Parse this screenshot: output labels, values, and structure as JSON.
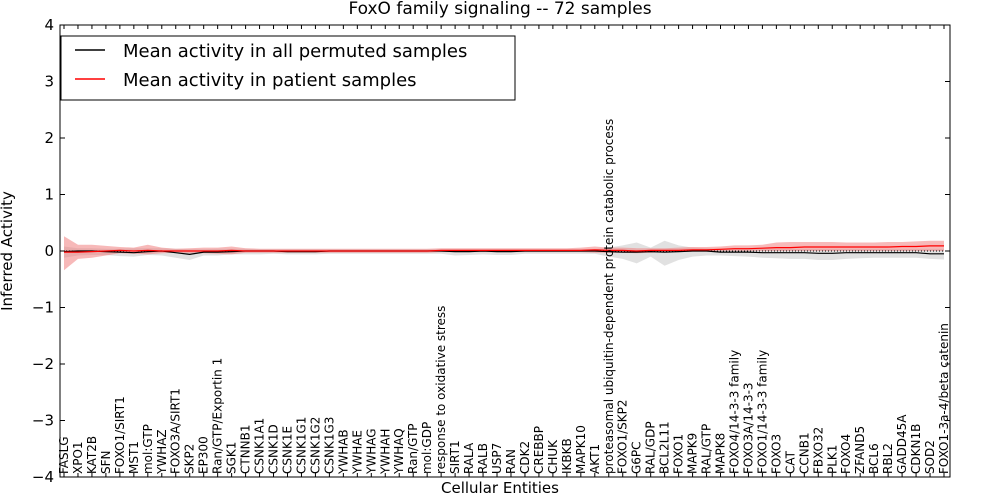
{
  "chart_data": {
    "type": "line",
    "title": "FoxO family signaling -- 72 samples",
    "xlabel": "Cellular Entities",
    "ylabel": "Inferred Activity",
    "ylim": [
      -4,
      4
    ],
    "yticks": [
      -4,
      -3,
      -2,
      -1,
      0,
      1,
      2,
      3,
      4
    ],
    "ytick_labels": [
      "−4",
      "−3",
      "−2",
      "−1",
      "0",
      "1",
      "2",
      "3",
      "4"
    ],
    "legend_position": "top-left",
    "colors": {
      "permuted": "#000000",
      "patient": "#ff0000",
      "patient_band": "#f08080",
      "permuted_band": "#c8c8c8",
      "zero_line": "#000000"
    },
    "categories": [
      "FASLG",
      "XPO1",
      "KAT2B",
      "SFN",
      "FOXO1/SIRT1",
      "MST1",
      "mol:GTP",
      "YWHAZ",
      "FOXO3A/SIRT1",
      "SKP2",
      "EP300",
      "Ran/GTP/Exportin 1",
      "SGK1",
      "CTNNB1",
      "CSNK1A1",
      "CSNK1D",
      "CSNK1E",
      "CSNK1G1",
      "CSNK1G2",
      "CSNK1G3",
      "YWHAB",
      "YWHAE",
      "YWHAG",
      "YWHAH",
      "YWHAQ",
      "Ran/GTP",
      "mol:GDP",
      "response to oxidative stress",
      "SIRT1",
      "RALA",
      "RALB",
      "USP7",
      "RAN",
      "CDK2",
      "CREBBP",
      "CHUK",
      "IKBKB",
      "MAPK10",
      "AKT1",
      "proteasomal ubiquitin-dependent protein catabolic process",
      "FOXO1/SKP2",
      "G6PC",
      "RAL/GDP",
      "BCL2L11",
      "FOXO1",
      "MAPK9",
      "RAL/GTP",
      "MAPK8",
      "FOXO4/14-3-3 family",
      "FOXO3A/14-3-3",
      "FOXO1/14-3-3 family",
      "FOXO3",
      "CAT",
      "CCNB1",
      "FBXO32",
      "PLK1",
      "FOXO4",
      "ZFAND5",
      "BCL6",
      "RBL2",
      "GADD45A",
      "CDKN1B",
      "SOD2",
      "FOXO1-3a-4/beta catenin"
    ],
    "series": [
      {
        "name": "Mean activity in all permuted samples",
        "values": [
          -0.01,
          0,
          0,
          -0.01,
          -0.02,
          -0.03,
          -0.01,
          0,
          -0.03,
          -0.06,
          -0.02,
          -0.02,
          -0.01,
          0,
          0,
          0,
          -0.01,
          -0.01,
          -0.01,
          0,
          0,
          0,
          0,
          0,
          0,
          0,
          0,
          0,
          -0.01,
          -0.01,
          0,
          -0.01,
          -0.01,
          0,
          0,
          0,
          0,
          0,
          0,
          -0.01,
          -0.02,
          -0.02,
          -0.01,
          -0.02,
          -0.01,
          0,
          0,
          -0.02,
          -0.02,
          -0.02,
          -0.03,
          -0.03,
          -0.03,
          -0.03,
          -0.04,
          -0.04,
          -0.03,
          -0.03,
          -0.03,
          -0.03,
          -0.03,
          -0.03,
          -0.05,
          -0.05
        ],
        "band_upper": [
          0.08,
          0.05,
          0.05,
          0.04,
          0.04,
          0.05,
          0.05,
          0.05,
          0.04,
          0.03,
          0.03,
          0.04,
          0.04,
          0.04,
          0.03,
          0.03,
          0.03,
          0.03,
          0.03,
          0.03,
          0.03,
          0.03,
          0.03,
          0.03,
          0.03,
          0.03,
          0.03,
          0.03,
          0.03,
          0.03,
          0.03,
          0.03,
          0.03,
          0.03,
          0.03,
          0.03,
          0.03,
          0.03,
          0.03,
          0.06,
          0.1,
          0.15,
          0.06,
          0.18,
          0.1,
          0.06,
          0.05,
          0.04,
          0.04,
          0.04,
          0.04,
          0.04,
          0.04,
          0.04,
          0.04,
          0.04,
          0.04,
          0.04,
          0.04,
          0.04,
          0.04,
          0.04,
          0.04,
          0.04
        ],
        "band_lower": [
          -0.12,
          -0.08,
          -0.07,
          -0.07,
          -0.09,
          -0.1,
          -0.07,
          -0.08,
          -0.12,
          -0.16,
          -0.08,
          -0.08,
          -0.06,
          -0.06,
          -0.06,
          -0.05,
          -0.06,
          -0.06,
          -0.06,
          -0.05,
          -0.05,
          -0.05,
          -0.05,
          -0.05,
          -0.05,
          -0.05,
          -0.05,
          -0.05,
          -0.08,
          -0.07,
          -0.06,
          -0.07,
          -0.07,
          -0.05,
          -0.05,
          -0.05,
          -0.05,
          -0.05,
          -0.05,
          -0.1,
          -0.14,
          -0.22,
          -0.1,
          -0.26,
          -0.16,
          -0.1,
          -0.08,
          -0.08,
          -0.09,
          -0.1,
          -0.12,
          -0.13,
          -0.14,
          -0.14,
          -0.16,
          -0.16,
          -0.14,
          -0.13,
          -0.12,
          -0.12,
          -0.12,
          -0.12,
          -0.14,
          -0.15
        ]
      },
      {
        "name": "Mean activity in patient samples",
        "values": [
          -0.02,
          -0.02,
          -0.01,
          0,
          0.01,
          0,
          0.01,
          0,
          0,
          0,
          0,
          0,
          0.01,
          0,
          0,
          0,
          0,
          0,
          0,
          0,
          0,
          0,
          0,
          0,
          0,
          0,
          0,
          0.01,
          0.01,
          0.01,
          0.01,
          0.01,
          0.01,
          0.01,
          0.01,
          0.01,
          0.01,
          0.01,
          0.02,
          0.01,
          0.01,
          0,
          0.01,
          0.01,
          0.01,
          0.02,
          0.02,
          0.03,
          0.04,
          0.04,
          0.05,
          0.06,
          0.06,
          0.07,
          0.07,
          0.07,
          0.07,
          0.07,
          0.07,
          0.07,
          0.08,
          0.08,
          0.09,
          0.09
        ],
        "band_upper": [
          0.26,
          0.11,
          0.11,
          0.09,
          0.07,
          0.06,
          0.11,
          0.06,
          0.04,
          0.05,
          0.06,
          0.06,
          0.08,
          0.05,
          0.04,
          0.04,
          0.04,
          0.04,
          0.04,
          0.04,
          0.04,
          0.04,
          0.04,
          0.04,
          0.04,
          0.04,
          0.04,
          0.05,
          0.05,
          0.05,
          0.05,
          0.05,
          0.05,
          0.05,
          0.05,
          0.05,
          0.05,
          0.06,
          0.08,
          0.06,
          0.06,
          0.05,
          0.05,
          0.05,
          0.06,
          0.07,
          0.07,
          0.08,
          0.1,
          0.1,
          0.11,
          0.15,
          0.16,
          0.16,
          0.16,
          0.16,
          0.15,
          0.15,
          0.15,
          0.16,
          0.16,
          0.17,
          0.18,
          0.18
        ],
        "band_lower": [
          -0.34,
          -0.14,
          -0.12,
          -0.08,
          -0.04,
          -0.05,
          -0.06,
          -0.04,
          -0.03,
          -0.04,
          -0.04,
          -0.05,
          -0.06,
          -0.03,
          -0.03,
          -0.03,
          -0.03,
          -0.03,
          -0.03,
          -0.03,
          -0.03,
          -0.03,
          -0.03,
          -0.03,
          -0.03,
          -0.03,
          -0.03,
          -0.02,
          -0.02,
          -0.02,
          -0.02,
          -0.02,
          -0.02,
          -0.02,
          -0.02,
          -0.02,
          -0.02,
          -0.02,
          -0.03,
          -0.03,
          -0.03,
          -0.04,
          -0.03,
          -0.02,
          -0.02,
          -0.01,
          -0.01,
          0,
          0,
          0,
          0,
          0,
          0,
          0,
          0,
          0,
          0,
          0,
          0,
          0,
          0,
          0,
          0,
          0
        ]
      }
    ]
  }
}
